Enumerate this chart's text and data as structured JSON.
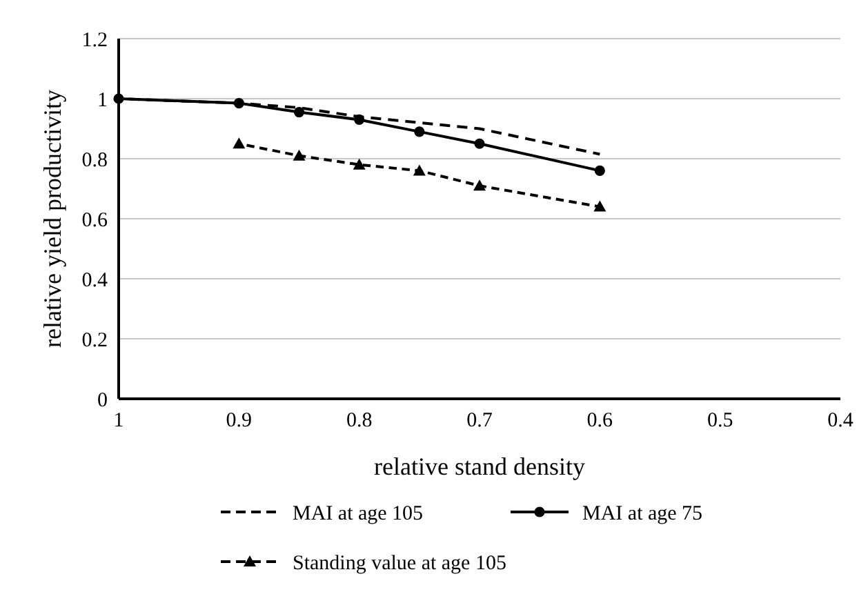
{
  "chart_data": {
    "type": "line",
    "xlabel": "relative stand density",
    "ylabel": "relative yield productivity",
    "xlim": [
      1,
      0.4
    ],
    "xticks": [
      1,
      0.9,
      0.8,
      0.7,
      0.6,
      0.5,
      0.4
    ],
    "ylim": [
      0,
      1.2
    ],
    "yticks": [
      0,
      0.2,
      0.4,
      0.6,
      0.8,
      1,
      1.2
    ],
    "grid": "y",
    "legend": "bottom",
    "series": [
      {
        "name": "MAI at age 105",
        "color": "#000000",
        "line_style": "dashed",
        "marker": "none",
        "x": [
          1,
          0.9,
          0.85,
          0.8,
          0.75,
          0.7,
          0.6
        ],
        "values": [
          1,
          0.985,
          0.97,
          0.94,
          0.92,
          0.9,
          0.815
        ]
      },
      {
        "name": "MAI at age 75",
        "color": "#000000",
        "line_style": "solid",
        "marker": "circle",
        "x": [
          1,
          0.9,
          0.85,
          0.8,
          0.75,
          0.7,
          0.6
        ],
        "values": [
          1,
          0.985,
          0.955,
          0.93,
          0.89,
          0.85,
          0.76
        ]
      },
      {
        "name": "Standing value at age 105",
        "color": "#000000",
        "line_style": "dashed",
        "marker": "triangle",
        "x": [
          0.9,
          0.85,
          0.8,
          0.75,
          0.7,
          0.6
        ],
        "values": [
          0.85,
          0.81,
          0.78,
          0.76,
          0.71,
          0.64
        ]
      }
    ]
  }
}
